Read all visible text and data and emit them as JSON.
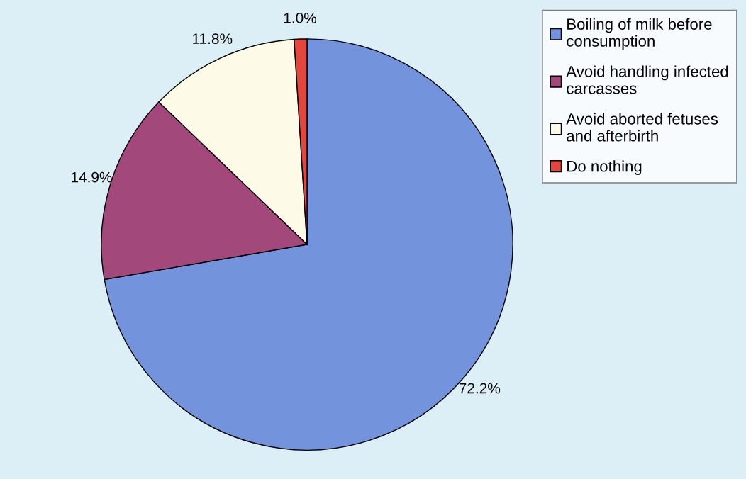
{
  "chart_data": {
    "type": "pie",
    "categories": [
      "Boiling of milk before consumption",
      "Avoid handling infected carcasses",
      "Avoid aborted fetuses and afterbirth",
      "Do nothing"
    ],
    "values": [
      72.2,
      14.9,
      11.8,
      1.0
    ],
    "colors": [
      "#7393dd",
      "#a3487b",
      "#fdfbe8",
      "#e2463c"
    ],
    "value_labels": [
      "72.2%",
      "14.9%",
      "11.8%",
      "1.0%"
    ],
    "legend": "right"
  }
}
